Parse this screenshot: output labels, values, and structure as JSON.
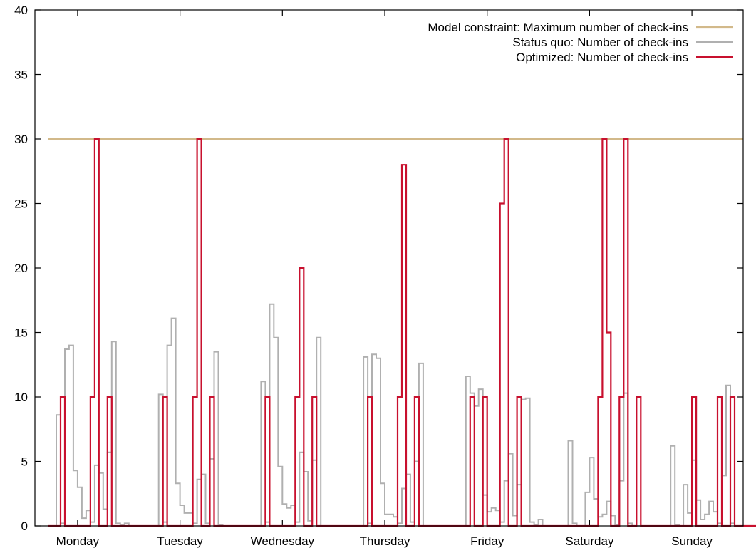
{
  "chart_data": {
    "type": "line",
    "step": true,
    "xlabel": "",
    "ylabel": "",
    "ylim": [
      0,
      40
    ],
    "yticks": [
      0,
      5,
      10,
      15,
      20,
      25,
      30,
      35,
      40
    ],
    "xlim": [
      0,
      168
    ],
    "days": [
      "Monday",
      "Tuesday",
      "Wednesday",
      "Thursday",
      "Friday",
      "Saturday",
      "Sunday"
    ],
    "hours_per_day": 24,
    "grid": false,
    "legend_position": "top-right",
    "series": [
      {
        "name": "Model constraint: Maximum number of check-ins",
        "color": "#d2b98a",
        "kind": "constant",
        "value": 30
      },
      {
        "name": "Status quo: Number of check-ins",
        "color": "#b0b0b0",
        "kind": "hourly",
        "days": [
          [
            0,
            0,
            8.6,
            0.2,
            13.7,
            14.0,
            4.3,
            3.0,
            0.6,
            1.2,
            0.3,
            4.7,
            4.1,
            1.3,
            5.7,
            14.3,
            0.2,
            0.1,
            0.2,
            0,
            0,
            0,
            0,
            0
          ],
          [
            0,
            0,
            10.2,
            0.3,
            14.0,
            16.1,
            3.3,
            1.6,
            1.0,
            1.0,
            0.2,
            3.6,
            4.0,
            0.2,
            5.2,
            13.5,
            0.1,
            0,
            0,
            0,
            0,
            0,
            0,
            0
          ],
          [
            0,
            0,
            11.2,
            0.3,
            17.2,
            14.6,
            4.6,
            1.7,
            1.4,
            1.6,
            0.3,
            5.7,
            4.2,
            0.4,
            5.1,
            14.6,
            0,
            0,
            0,
            0,
            0,
            0,
            0,
            0
          ],
          [
            0,
            0,
            13.1,
            0.2,
            13.3,
            13.0,
            3.3,
            0.9,
            0.9,
            0.7,
            0.2,
            2.9,
            4.0,
            0.3,
            5.0,
            12.6,
            0,
            0,
            0,
            0,
            0,
            0,
            0,
            0
          ],
          [
            0,
            0,
            11.6,
            10.3,
            9.3,
            10.6,
            2.4,
            1.1,
            1.4,
            1.2,
            0.3,
            3.5,
            5.6,
            0.8,
            3.2,
            9.8,
            9.9,
            0.3,
            0.1,
            0.5,
            0,
            0,
            0,
            0
          ],
          [
            0,
            0,
            6.6,
            0.2,
            0,
            0,
            2.6,
            5.3,
            2.1,
            0.7,
            0.9,
            1.9,
            0.8,
            0.1,
            3.5,
            10.3,
            0.2,
            0,
            0,
            0,
            0,
            0,
            0,
            0
          ],
          [
            0,
            0,
            6.2,
            0.1,
            0,
            3.2,
            1.0,
            5.1,
            2.0,
            0.5,
            0.9,
            1.9,
            1.1,
            0.2,
            3.9,
            10.9,
            0.2,
            0,
            0,
            0,
            0,
            0,
            0,
            0
          ]
        ]
      },
      {
        "name": "Optimized: Number of check-ins",
        "color": "#c8102e",
        "kind": "hourly",
        "days": [
          [
            0,
            0,
            0,
            10,
            0,
            0,
            0,
            0,
            0,
            0,
            10,
            30,
            0,
            0,
            10,
            0,
            0,
            0,
            0,
            0,
            0,
            0,
            0,
            0
          ],
          [
            0,
            0,
            0,
            10,
            0,
            0,
            0,
            0,
            0,
            0,
            10,
            30,
            0,
            0,
            10,
            0,
            0,
            0,
            0,
            0,
            0,
            0,
            0,
            0
          ],
          [
            0,
            0,
            0,
            10,
            0,
            0,
            0,
            0,
            0,
            0,
            10,
            20,
            0,
            0,
            10,
            0,
            0,
            0,
            0,
            0,
            0,
            0,
            0,
            0
          ],
          [
            0,
            0,
            0,
            10,
            0,
            0,
            0,
            0,
            0,
            0,
            10,
            28,
            0,
            0,
            10,
            0,
            0,
            0,
            0,
            0,
            0,
            0,
            0,
            0
          ],
          [
            0,
            0,
            0,
            10,
            0,
            0,
            10,
            0,
            0,
            0,
            25,
            30,
            0,
            0,
            10,
            0,
            0,
            0,
            0,
            0,
            0,
            0,
            0,
            0
          ],
          [
            0,
            0,
            0,
            0,
            0,
            0,
            0,
            0,
            0,
            10,
            30,
            15,
            0,
            0,
            10,
            30,
            0,
            0,
            10,
            0,
            0,
            0,
            0,
            0
          ],
          [
            0,
            0,
            0,
            0,
            0,
            0,
            0,
            10,
            0,
            0,
            0,
            0,
            0,
            10,
            0,
            0,
            10,
            0,
            0,
            0,
            0,
            0,
            0,
            0
          ]
        ]
      }
    ]
  }
}
